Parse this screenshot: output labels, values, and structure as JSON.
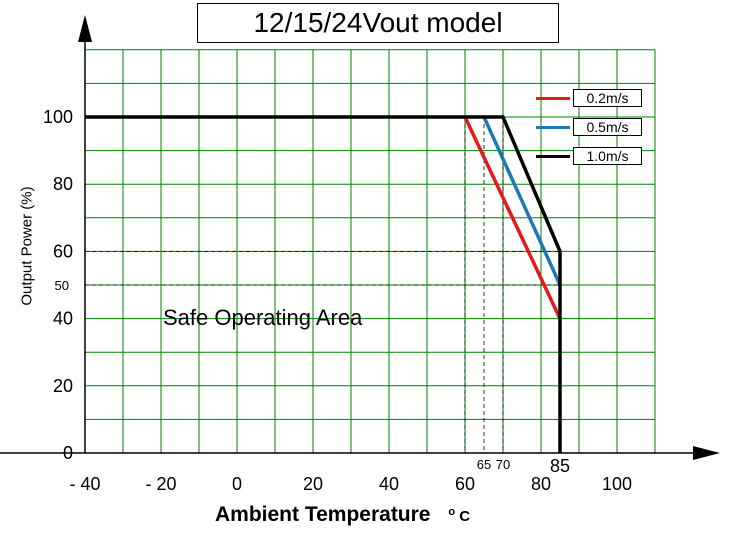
{
  "chart_data": {
    "type": "line",
    "title": "12/15/24Vout model",
    "xlabel": "Ambient Temperature",
    "xlabel_unit": "o C",
    "ylabel": "Output Power (%)",
    "annotation": "Safe Operating Area",
    "xlim": [
      -40,
      110
    ],
    "ylim": [
      0,
      120
    ],
    "x_ticks": [
      -40,
      -20,
      0,
      20,
      40,
      60,
      80,
      100
    ],
    "x_tick_labels": [
      "- 40",
      "- 20",
      "0",
      "20",
      "40",
      "60",
      "80",
      "100"
    ],
    "y_ticks": [
      0,
      20,
      40,
      60,
      80,
      100
    ],
    "y_tick_labels": [
      "0",
      "20",
      "40",
      "60",
      "80",
      "100"
    ],
    "extra_x_labels": [
      {
        "x": 65,
        "label": "65"
      },
      {
        "x": 70,
        "label": "70"
      },
      {
        "x": 85,
        "label": "85"
      }
    ],
    "extra_y_labels": [
      {
        "y": 50,
        "label": "50"
      }
    ],
    "reference_lines": {
      "horizontal": [
        60,
        50
      ],
      "vertical": [
        60,
        65,
        70
      ]
    },
    "grid": true,
    "grid_color": "#008000",
    "legend_position": "top-right",
    "series": [
      {
        "name": "0.2m/s",
        "color": "#e31a1c",
        "x": [
          60,
          85
        ],
        "y": [
          100,
          40
        ]
      },
      {
        "name": "0.5m/s",
        "color": "#1f78b4",
        "x": [
          65,
          85
        ],
        "y": [
          100,
          50
        ]
      },
      {
        "name": "1.0m/s",
        "color": "#000000",
        "x": [
          -40,
          70,
          85,
          85
        ],
        "y": [
          100,
          100,
          60,
          0
        ]
      }
    ]
  }
}
